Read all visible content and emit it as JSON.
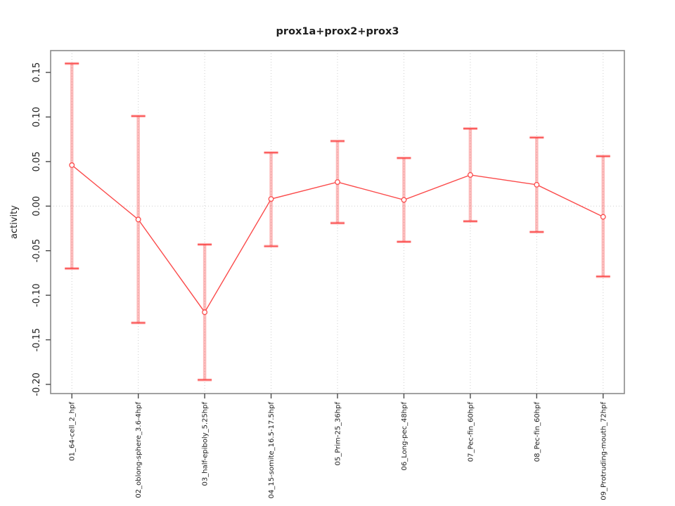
{
  "figure": {
    "title": "prox1a+prox2+prox3"
  },
  "chart_data": {
    "type": "line",
    "title": "prox1a+prox2+prox3",
    "xlabel": "",
    "ylabel": "activity",
    "categories": [
      "01_64-cell_2_hpf",
      "02_oblong-sphere_3.6-4hpf",
      "03_half-epiboly_5.25hpf",
      "04_15-somite_16.5-17.5hpf",
      "05_Prim-25_36hpf",
      "06_Long-pec_48hpf",
      "07_Pec-fin_60hpf",
      "08_Pec-fin_60hpf",
      "09_Protruding-mouth_72hpf"
    ],
    "series": [
      {
        "name": "activity",
        "values": [
          0.046,
          -0.015,
          -0.119,
          0.008,
          0.027,
          0.007,
          0.035,
          0.024,
          -0.012
        ],
        "upper": [
          0.16,
          0.101,
          -0.043,
          0.06,
          0.073,
          0.054,
          0.087,
          0.077,
          0.056
        ],
        "lower": [
          -0.07,
          -0.131,
          -0.195,
          -0.045,
          -0.019,
          -0.04,
          -0.017,
          -0.029,
          -0.079
        ]
      }
    ],
    "yticks": {
      "values": [
        0.15,
        0.1,
        0.05,
        0.0,
        -0.05,
        -0.1,
        -0.15,
        -0.2
      ],
      "labels": [
        "0.15",
        "0.10",
        "0.05",
        "0.00",
        "-0.05",
        "-0.10",
        "-0.15",
        "-0.20"
      ]
    },
    "ylim": [
      -0.2103,
      0.1745
    ],
    "grid": {
      "vertical_dotted": true,
      "horizontal_zero_line": true
    },
    "legend": "none",
    "marker": "open-circle",
    "colors": {
      "series": "#fb4b4b",
      "error_band": "rgba(251,75,75,0.38)",
      "marker_fill": "#ffffff",
      "grid": "#cdcdcd",
      "box": "#8a8a8a",
      "tick": "#4a4a4a",
      "text": "#1d1d1d"
    }
  }
}
